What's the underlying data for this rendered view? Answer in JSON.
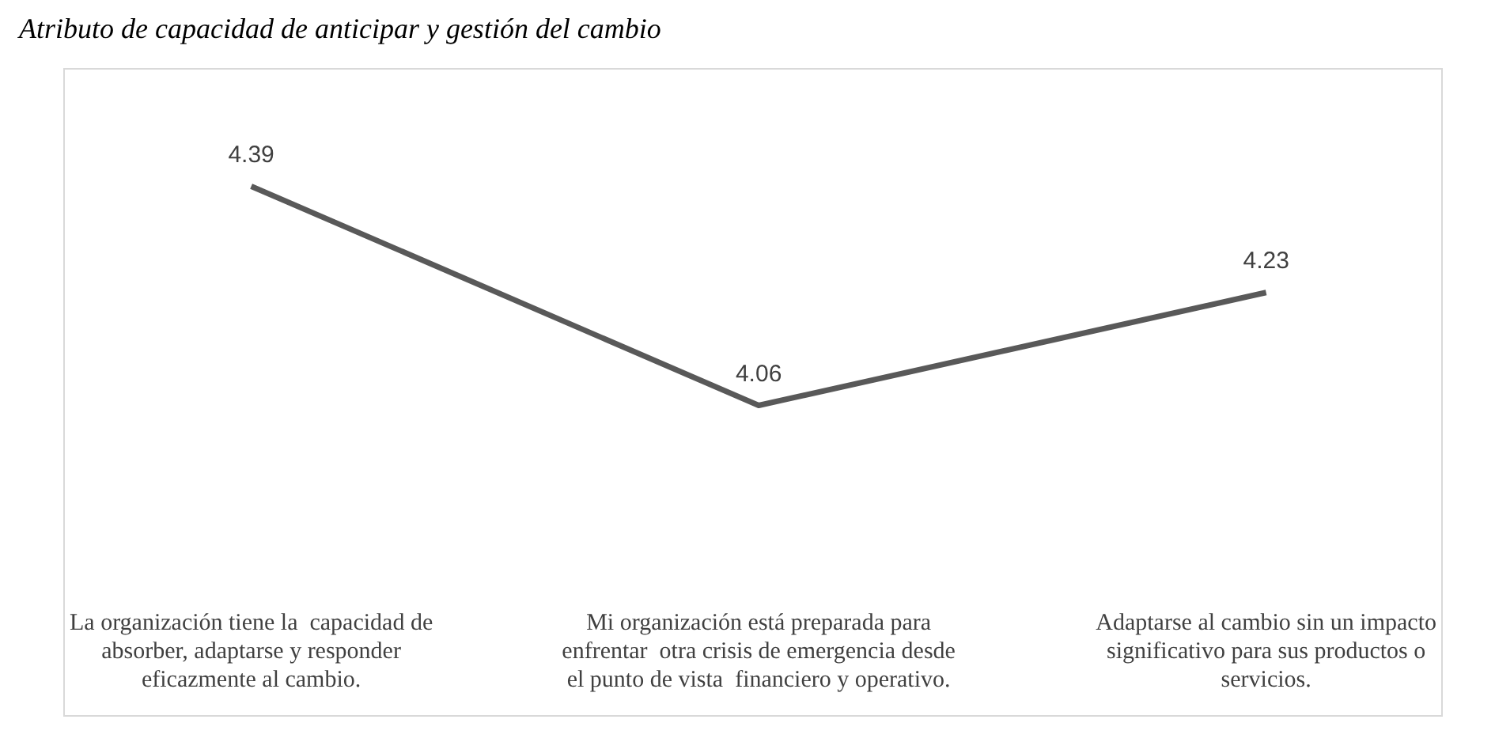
{
  "chart_data": {
    "type": "line",
    "title": "Atributo de capacidad de anticipar y gestión del cambio",
    "categories": [
      "La organización tiene la  capacidad de absorber, adaptarse y responder eficazmente al cambio.",
      "Mi organización está preparada para enfrentar  otra crisis de emergencia desde el punto de vista  financiero y operativo.",
      "Adaptarse al cambio sin un impacto significativo para sus productos o servicios."
    ],
    "values": [
      4.39,
      4.06,
      4.23
    ],
    "color": "#595959",
    "marker": "none",
    "data_labels": true
  }
}
